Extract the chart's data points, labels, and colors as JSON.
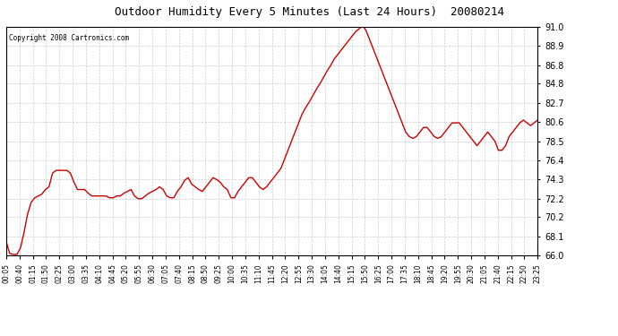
{
  "title": "Outdoor Humidity Every 5 Minutes (Last 24 Hours)  20080214",
  "copyright": "Copyright 2008 Cartronics.com",
  "line_color": "#cc0000",
  "bg_color": "#ffffff",
  "grid_color": "#cccccc",
  "ylim": [
    66.0,
    91.0
  ],
  "yticks": [
    66.0,
    68.1,
    70.2,
    72.2,
    74.3,
    76.4,
    78.5,
    80.6,
    82.7,
    84.8,
    86.8,
    88.9,
    91.0
  ],
  "x_labels": [
    "00:05",
    "00:40",
    "01:15",
    "01:50",
    "02:25",
    "03:00",
    "03:35",
    "04:10",
    "04:45",
    "05:20",
    "05:55",
    "06:30",
    "07:05",
    "07:40",
    "08:15",
    "08:50",
    "09:25",
    "10:00",
    "10:35",
    "11:10",
    "11:45",
    "12:20",
    "12:55",
    "13:30",
    "14:05",
    "14:40",
    "15:15",
    "15:50",
    "16:25",
    "17:00",
    "17:35",
    "18:10",
    "18:45",
    "19:20",
    "19:55",
    "20:30",
    "21:05",
    "21:40",
    "22:15",
    "22:50",
    "23:25"
  ],
  "y_values": [
    67.5,
    66.2,
    66.1,
    66.1,
    66.8,
    68.5,
    70.5,
    71.8,
    72.3,
    72.5,
    72.7,
    73.2,
    73.5,
    75.0,
    75.3,
    75.3,
    75.3,
    75.3,
    75.0,
    74.0,
    73.2,
    73.2,
    73.2,
    72.8,
    72.5,
    72.5,
    72.5,
    72.5,
    72.5,
    72.3,
    72.3,
    72.5,
    72.5,
    72.8,
    73.0,
    73.2,
    72.5,
    72.2,
    72.2,
    72.5,
    72.8,
    73.0,
    73.2,
    73.5,
    73.2,
    72.5,
    72.3,
    72.3,
    73.0,
    73.5,
    74.2,
    74.5,
    73.8,
    73.5,
    73.2,
    73.0,
    73.5,
    74.0,
    74.5,
    74.3,
    74.0,
    73.5,
    73.2,
    72.3,
    72.3,
    73.0,
    73.5,
    74.0,
    74.5,
    74.5,
    74.0,
    73.5,
    73.2,
    73.5,
    74.0,
    74.5,
    75.0,
    75.5,
    76.5,
    77.5,
    78.5,
    79.5,
    80.5,
    81.5,
    82.2,
    82.8,
    83.5,
    84.2,
    84.8,
    85.5,
    86.2,
    86.8,
    87.5,
    88.0,
    88.5,
    89.0,
    89.5,
    90.0,
    90.5,
    90.8,
    91.2,
    90.5,
    89.5,
    88.5,
    87.5,
    86.5,
    85.5,
    84.5,
    83.5,
    82.5,
    81.5,
    80.5,
    79.5,
    79.0,
    78.8,
    79.0,
    79.5,
    80.0,
    80.0,
    79.5,
    79.0,
    78.8,
    79.0,
    79.5,
    80.0,
    80.5,
    80.5,
    80.5,
    80.0,
    79.5,
    79.0,
    78.5,
    78.0,
    78.5,
    79.0,
    79.5,
    79.0,
    78.5,
    77.5,
    77.5,
    78.0,
    79.0,
    79.5,
    80.0,
    80.5,
    80.8,
    80.5,
    80.2,
    80.5,
    80.8
  ]
}
